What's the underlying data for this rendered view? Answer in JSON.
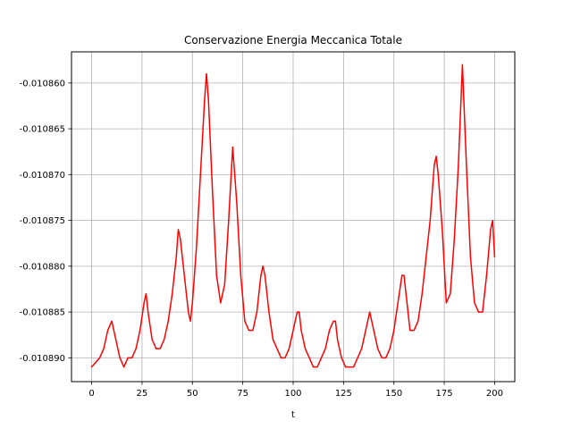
{
  "chart_data": {
    "type": "line",
    "title": "Conservazione Energia Meccanica Totale",
    "xlabel": "t",
    "ylabel": "",
    "xlim": [
      -10,
      210
    ],
    "ylim": [
      -0.0108926,
      -0.0108566
    ],
    "xticks": [
      0,
      25,
      50,
      75,
      100,
      125,
      150,
      175,
      200
    ],
    "xtick_labels": [
      "0",
      "25",
      "50",
      "75",
      "100",
      "125",
      "150",
      "175",
      "200"
    ],
    "yticks": [
      -0.01086,
      -0.010865,
      -0.01087,
      -0.010875,
      -0.01088,
      -0.010885,
      -0.01089
    ],
    "ytick_labels": [
      "-0.010860",
      "-0.010865",
      "-0.010870",
      "-0.010875",
      "-0.010880",
      "-0.010885",
      "-0.010890"
    ],
    "grid": true,
    "series": [
      {
        "color": "#ff0000",
        "x": [
          0,
          4,
          6,
          8,
          10,
          12,
          14,
          16,
          18,
          20,
          22,
          24,
          26,
          27,
          28,
          30,
          32,
          34,
          36,
          38,
          40,
          42,
          43,
          44,
          46,
          48,
          49,
          50,
          52,
          54,
          56,
          57,
          58,
          60,
          62,
          64,
          66,
          68,
          70,
          72,
          74,
          76,
          78,
          80,
          82,
          84,
          85,
          86,
          88,
          90,
          92,
          94,
          96,
          98,
          100,
          102,
          103,
          104,
          106,
          108,
          110,
          112,
          114,
          116,
          118,
          120,
          121,
          122,
          124,
          126,
          128,
          130,
          132,
          134,
          136,
          138,
          140,
          142,
          144,
          146,
          148,
          150,
          152,
          154,
          155,
          156,
          158,
          160,
          162,
          164,
          166,
          168,
          170,
          171,
          172,
          174,
          176,
          178,
          180,
          182,
          184,
          186,
          188,
          190,
          192,
          194,
          196,
          198,
          199,
          200
        ],
        "y": [
          -0.010891,
          -0.01089,
          -0.010889,
          -0.010887,
          -0.010886,
          -0.010888,
          -0.01089,
          -0.010891,
          -0.01089,
          -0.01089,
          -0.010889,
          -0.010887,
          -0.010884,
          -0.010883,
          -0.010885,
          -0.010888,
          -0.010889,
          -0.010889,
          -0.010888,
          -0.010886,
          -0.010883,
          -0.010879,
          -0.010876,
          -0.010877,
          -0.010881,
          -0.010885,
          -0.010886,
          -0.010884,
          -0.010878,
          -0.01087,
          -0.010862,
          -0.010859,
          -0.010862,
          -0.010872,
          -0.010881,
          -0.010884,
          -0.010882,
          -0.010875,
          -0.010867,
          -0.010873,
          -0.010881,
          -0.010886,
          -0.010887,
          -0.010887,
          -0.010885,
          -0.010881,
          -0.01088,
          -0.010881,
          -0.010885,
          -0.010888,
          -0.010889,
          -0.01089,
          -0.01089,
          -0.010889,
          -0.010887,
          -0.010885,
          -0.010885,
          -0.010887,
          -0.010889,
          -0.01089,
          -0.010891,
          -0.010891,
          -0.01089,
          -0.010889,
          -0.010887,
          -0.010886,
          -0.010886,
          -0.010888,
          -0.01089,
          -0.010891,
          -0.010891,
          -0.010891,
          -0.01089,
          -0.010889,
          -0.010887,
          -0.010885,
          -0.010887,
          -0.010889,
          -0.01089,
          -0.01089,
          -0.010889,
          -0.010887,
          -0.010884,
          -0.010881,
          -0.010881,
          -0.010883,
          -0.010887,
          -0.010887,
          -0.010886,
          -0.010883,
          -0.010879,
          -0.010875,
          -0.010869,
          -0.010868,
          -0.01087,
          -0.010876,
          -0.010884,
          -0.010883,
          -0.010877,
          -0.010869,
          -0.010858,
          -0.010869,
          -0.010879,
          -0.010884,
          -0.010885,
          -0.010885,
          -0.010881,
          -0.010876,
          -0.010875,
          -0.010879
        ]
      }
    ]
  }
}
